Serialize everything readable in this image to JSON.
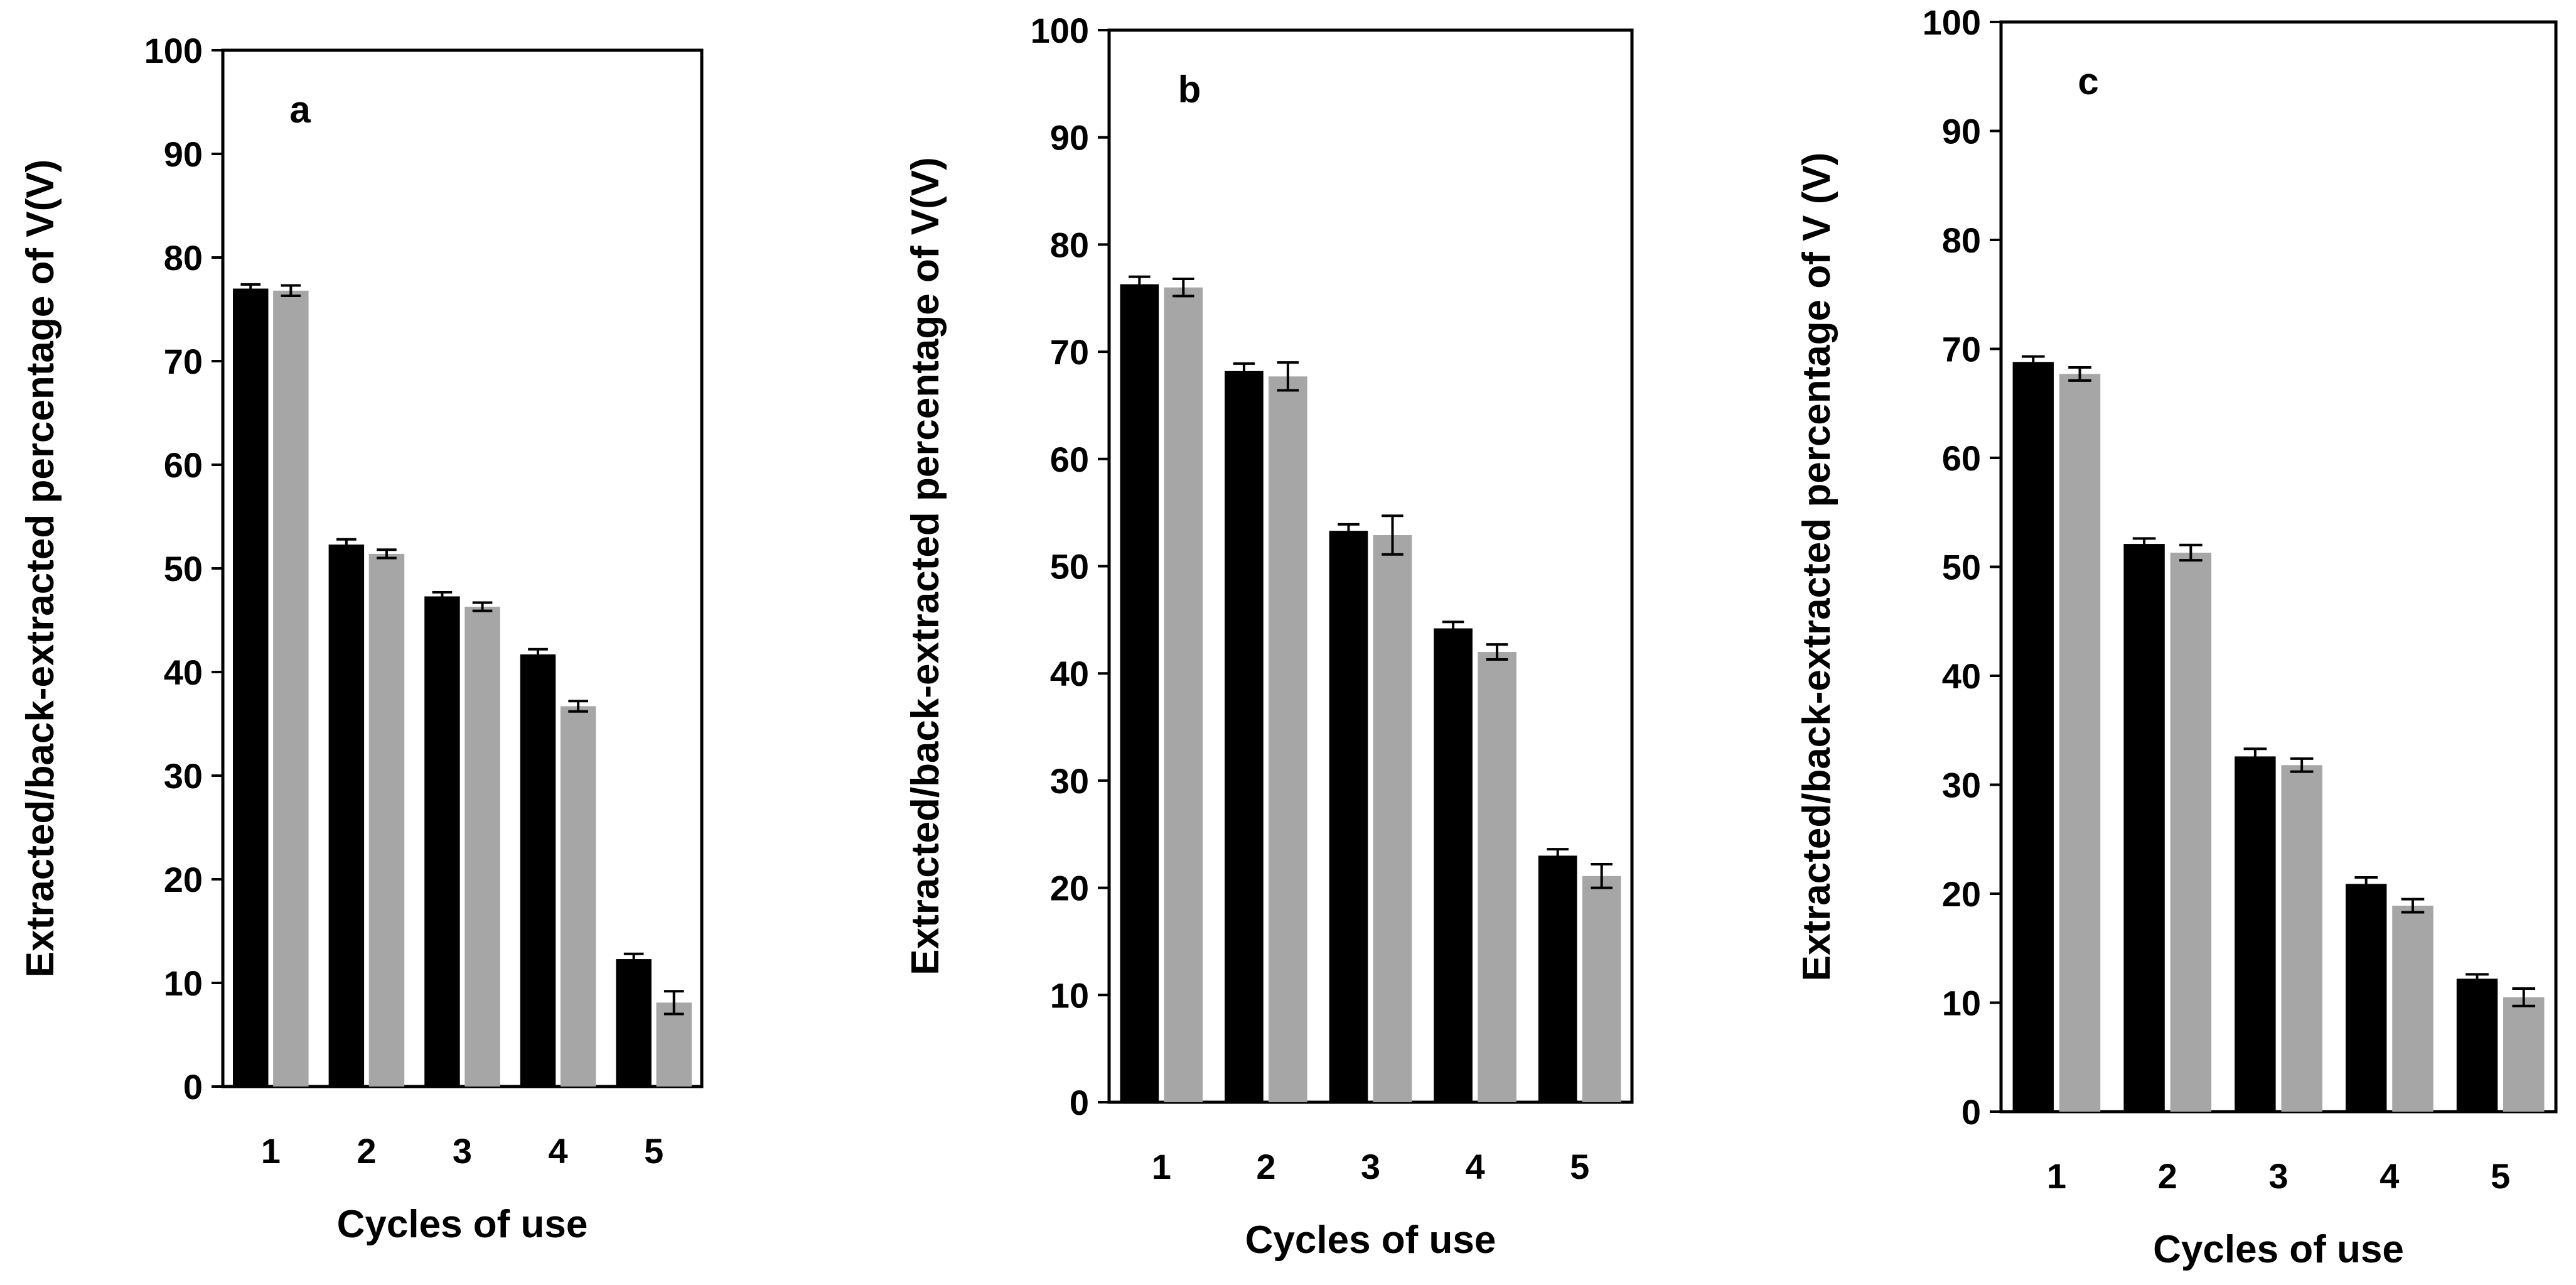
{
  "colors": {
    "series_1": "#000000",
    "series_2": "#a6a6a6",
    "frame": "#000000",
    "background": "#ffffff"
  },
  "chart_data": [
    {
      "type": "bar",
      "panel_label": "a",
      "title": "",
      "xlabel": "Cycles of use",
      "ylabel": "Extracted/back-extracted percentage of V(V)",
      "ylim": [
        0,
        100
      ],
      "yticks": [
        0,
        10,
        20,
        30,
        40,
        50,
        60,
        70,
        80,
        90,
        100
      ],
      "categories": [
        "1",
        "2",
        "3",
        "4",
        "5"
      ],
      "grid": false,
      "series": [
        {
          "name": "Extracted",
          "values": [
            77.0,
            52.3,
            47.3,
            41.7,
            12.3
          ],
          "errors": [
            0.4,
            0.5,
            0.4,
            0.5,
            0.5
          ]
        },
        {
          "name": "Back-extracted",
          "values": [
            76.8,
            51.4,
            46.3,
            36.7,
            8.1
          ],
          "errors": [
            0.5,
            0.4,
            0.4,
            0.5,
            1.1
          ]
        }
      ]
    },
    {
      "type": "bar",
      "panel_label": "b",
      "title": "",
      "xlabel": "Cycles of use",
      "ylabel": "Extracted/back-extracted percentage of V(V)",
      "ylim": [
        0,
        100
      ],
      "yticks": [
        0,
        10,
        20,
        30,
        40,
        50,
        60,
        70,
        80,
        90,
        100
      ],
      "categories": [
        "1",
        "2",
        "3",
        "4",
        "5"
      ],
      "grid": false,
      "series": [
        {
          "name": "Extracted",
          "values": [
            76.3,
            68.2,
            53.3,
            44.2,
            23.0
          ],
          "errors": [
            0.7,
            0.7,
            0.6,
            0.6,
            0.6
          ]
        },
        {
          "name": "Back-extracted",
          "values": [
            76.0,
            67.7,
            52.9,
            42.0,
            21.1
          ],
          "errors": [
            0.8,
            1.3,
            1.8,
            0.7,
            1.1
          ]
        }
      ]
    },
    {
      "type": "bar",
      "panel_label": "c",
      "title": "",
      "xlabel": "Cycles of use",
      "ylabel": "Extracted/back-extracted percentage of V (V)",
      "ylim": [
        0,
        100
      ],
      "yticks": [
        0,
        10,
        20,
        30,
        40,
        50,
        60,
        70,
        80,
        90,
        100
      ],
      "categories": [
        "1",
        "2",
        "3",
        "4",
        "5"
      ],
      "grid": false,
      "series": [
        {
          "name": "Extracted",
          "values": [
            68.8,
            52.1,
            32.6,
            20.9,
            12.2
          ],
          "errors": [
            0.5,
            0.5,
            0.7,
            0.6,
            0.4
          ]
        },
        {
          "name": "Back-extracted",
          "values": [
            67.7,
            51.3,
            31.8,
            18.9,
            10.5
          ],
          "errors": [
            0.6,
            0.7,
            0.6,
            0.6,
            0.8
          ]
        }
      ]
    }
  ]
}
